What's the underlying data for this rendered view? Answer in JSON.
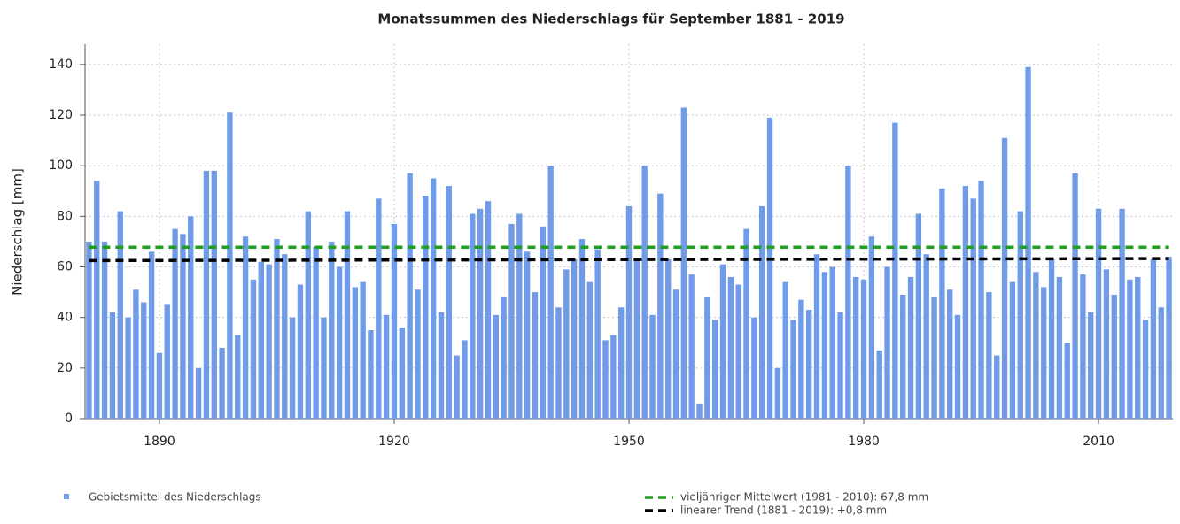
{
  "chart_data": {
    "type": "bar",
    "title": "Monatssummen des Niederschlags für September 1881 - 2019",
    "y_label": "Niederschlag [mm]",
    "x": [
      1881,
      1882,
      1883,
      1884,
      1885,
      1886,
      1887,
      1888,
      1889,
      1890,
      1891,
      1892,
      1893,
      1894,
      1895,
      1896,
      1897,
      1898,
      1899,
      1900,
      1901,
      1902,
      1903,
      1904,
      1905,
      1906,
      1907,
      1908,
      1909,
      1910,
      1911,
      1912,
      1913,
      1914,
      1915,
      1916,
      1917,
      1918,
      1919,
      1920,
      1921,
      1922,
      1923,
      1924,
      1925,
      1926,
      1927,
      1928,
      1929,
      1930,
      1931,
      1932,
      1933,
      1934,
      1935,
      1936,
      1937,
      1938,
      1939,
      1940,
      1941,
      1942,
      1943,
      1944,
      1945,
      1946,
      1947,
      1948,
      1949,
      1950,
      1951,
      1952,
      1953,
      1954,
      1955,
      1956,
      1957,
      1958,
      1959,
      1960,
      1961,
      1962,
      1963,
      1964,
      1965,
      1966,
      1967,
      1968,
      1969,
      1970,
      1971,
      1972,
      1973,
      1974,
      1975,
      1976,
      1977,
      1978,
      1979,
      1980,
      1981,
      1982,
      1983,
      1984,
      1985,
      1986,
      1987,
      1988,
      1989,
      1990,
      1991,
      1992,
      1993,
      1994,
      1995,
      1996,
      1997,
      1998,
      1999,
      2000,
      2001,
      2002,
      2003,
      2004,
      2005,
      2006,
      2007,
      2008,
      2009,
      2010,
      2011,
      2012,
      2013,
      2014,
      2015,
      2016,
      2017,
      2018,
      2019
    ],
    "series": [
      {
        "name": "Gebietsmittel des Niederschlags",
        "color": "#6f9be8",
        "values": [
          70,
          94,
          70,
          42,
          82,
          40,
          51,
          46,
          66,
          26,
          45,
          75,
          73,
          80,
          20,
          98,
          98,
          28,
          121,
          33,
          72,
          55,
          62,
          61,
          71,
          65,
          40,
          53,
          82,
          68,
          40,
          70,
          60,
          82,
          52,
          54,
          35,
          87,
          41,
          77,
          36,
          97,
          51,
          88,
          95,
          42,
          92,
          25,
          31,
          81,
          83,
          86,
          41,
          48,
          77,
          81,
          66,
          50,
          76,
          100,
          44,
          59,
          63,
          71,
          54,
          67,
          31,
          33,
          44,
          84,
          63,
          100,
          41,
          89,
          63,
          51,
          123,
          57,
          6,
          48,
          39,
          61,
          56,
          53,
          75,
          40,
          84,
          119,
          20,
          54,
          39,
          47,
          43,
          65,
          58,
          60,
          42,
          100,
          56,
          55,
          72,
          27,
          60,
          117,
          49,
          56,
          81,
          65,
          48,
          91,
          51,
          41,
          92,
          87,
          94,
          50,
          25,
          111,
          54,
          82,
          139,
          58,
          52,
          63,
          56,
          30,
          97,
          57,
          42,
          83,
          59,
          49,
          83,
          55,
          56,
          39,
          63,
          44,
          64
        ]
      }
    ],
    "lines": [
      {
        "name": "vieljähriger Mittelwert (1981 - 2010): 67,8 mm",
        "color": "#1f9e1f",
        "x": [
          1881,
          2019
        ],
        "values": [
          67.8,
          67.8
        ]
      },
      {
        "name": "linearer Trend (1881 - 2019): +0,8 mm",
        "color": "#000000",
        "x": [
          1881,
          2019
        ],
        "values": [
          62.5,
          63.3
        ]
      }
    ],
    "xlim": [
      1880.5,
      2019.5
    ],
    "xticks": [
      1890,
      1920,
      1950,
      1980,
      2010
    ],
    "ylim": [
      0,
      148
    ],
    "yticks": [
      0,
      20,
      40,
      60,
      80,
      100,
      120,
      140
    ],
    "grid": true
  }
}
